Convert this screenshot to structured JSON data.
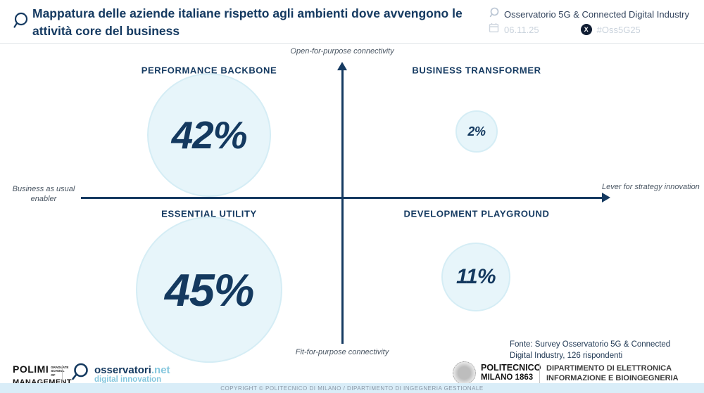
{
  "header": {
    "title": "Mappatura delle aziende italiane rispetto agli ambienti dove avvengono le attività core del business",
    "observatory": "Osservatorio 5G & Connected Digital Industry",
    "date": "06.11.25",
    "hashtag": "#Oss5G25",
    "x_icon_glyph": "X"
  },
  "chart_data": {
    "type": "scatter",
    "subtype": "quadrant-bubble-matrix",
    "title": "Mappatura delle aziende italiane rispetto agli ambienti dove avvengono le attività core del business",
    "axes": {
      "y_top_label": "Open-for-purpose connectivity",
      "y_bottom_label": "Fit-for-purpose connectivity",
      "x_left_label": "Business as usual enabler",
      "x_right_label": "Lever for strategy innovation"
    },
    "quadrants": [
      {
        "name": "PERFORMANCE BACKBONE",
        "position": "top-left",
        "value": 42,
        "label": "42%",
        "radius_px": 86
      },
      {
        "name": "BUSINESS TRANSFORMER",
        "position": "top-right",
        "value": 2,
        "label": "2%",
        "radius_px": 28
      },
      {
        "name": "ESSENTIAL UTILITY",
        "position": "bottom-left",
        "value": 45,
        "label": "45%",
        "radius_px": 102
      },
      {
        "name": "DEVELOPMENT PLAYGROUND",
        "position": "bottom-right",
        "value": 11,
        "label": "11%",
        "radius_px": 47
      }
    ],
    "values_unit": "percent of 126 respondents",
    "source": "Fonte: Survey Osservatorio 5G & Connected Digital Industry, 126 rispondenti",
    "bubble_color": "#e7f5fa",
    "bubble_border_color": "#d5edf5",
    "accent_color": "#153a61",
    "legend": "none",
    "grid": "off"
  },
  "footer": {
    "polimi_logo": {
      "line1": "POLIMI",
      "line1_small": "GRADUATE SCHOOL OF",
      "line2": "MANAGEMENT"
    },
    "osservatori_logo": {
      "name": "osservatori",
      "suffix": ".net",
      "tagline": "digital innovation"
    },
    "politecnico_logo": {
      "line1": "POLITECNICO",
      "line2": "MILANO 1863"
    },
    "department": {
      "line1": "DIPARTIMENTO DI ELETTRONICA",
      "line2": "INFORMAZIONE E BIOINGEGNERIA"
    },
    "copyright": "COPYRIGHT © POLITECNICO DI MILANO / DIPARTIMENTO DI INGEGNERIA GESTIONALE"
  }
}
